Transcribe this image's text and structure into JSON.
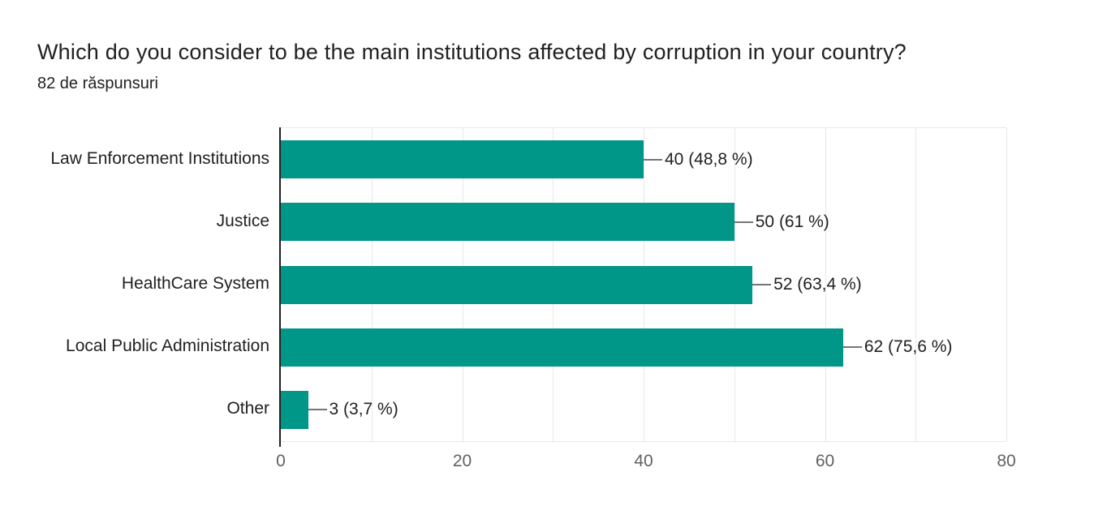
{
  "header": {
    "title": "Which do you consider to be the main institutions affected by corruption in your country?",
    "subtitle": "82 de răspunsuri"
  },
  "chart_data": {
    "type": "bar",
    "orientation": "horizontal",
    "title": "Which do you consider to be the main institutions affected by corruption in your country?",
    "subtitle": "82 de răspunsuri",
    "categories": [
      "Law Enforcement Institutions",
      "Justice",
      "HealthCare System",
      "Local Public Administration",
      "Other"
    ],
    "values": [
      40,
      50,
      52,
      62,
      3
    ],
    "value_labels": [
      "40 (48,8 %)",
      "50 (61 %)",
      "52 (63,4 %)",
      "62 (75,6 %)",
      "3 (3,7 %)"
    ],
    "percentages": [
      48.8,
      61,
      63.4,
      75.6,
      3.7
    ],
    "x_ticks": [
      "0",
      "20",
      "40",
      "60",
      "80"
    ],
    "xlim": [
      0,
      80
    ],
    "gridline_interval": 10,
    "grid": true,
    "legend": "none",
    "xlabel": "",
    "ylabel": ""
  },
  "colors": {
    "bar": "#009688",
    "gridline": "#e8e8e8",
    "axis": "#212121",
    "tick_label": "#616161",
    "category_label": "#212121",
    "value_label": "#212121",
    "connector": "#757575",
    "title": "#212121",
    "background": "#ffffff"
  }
}
